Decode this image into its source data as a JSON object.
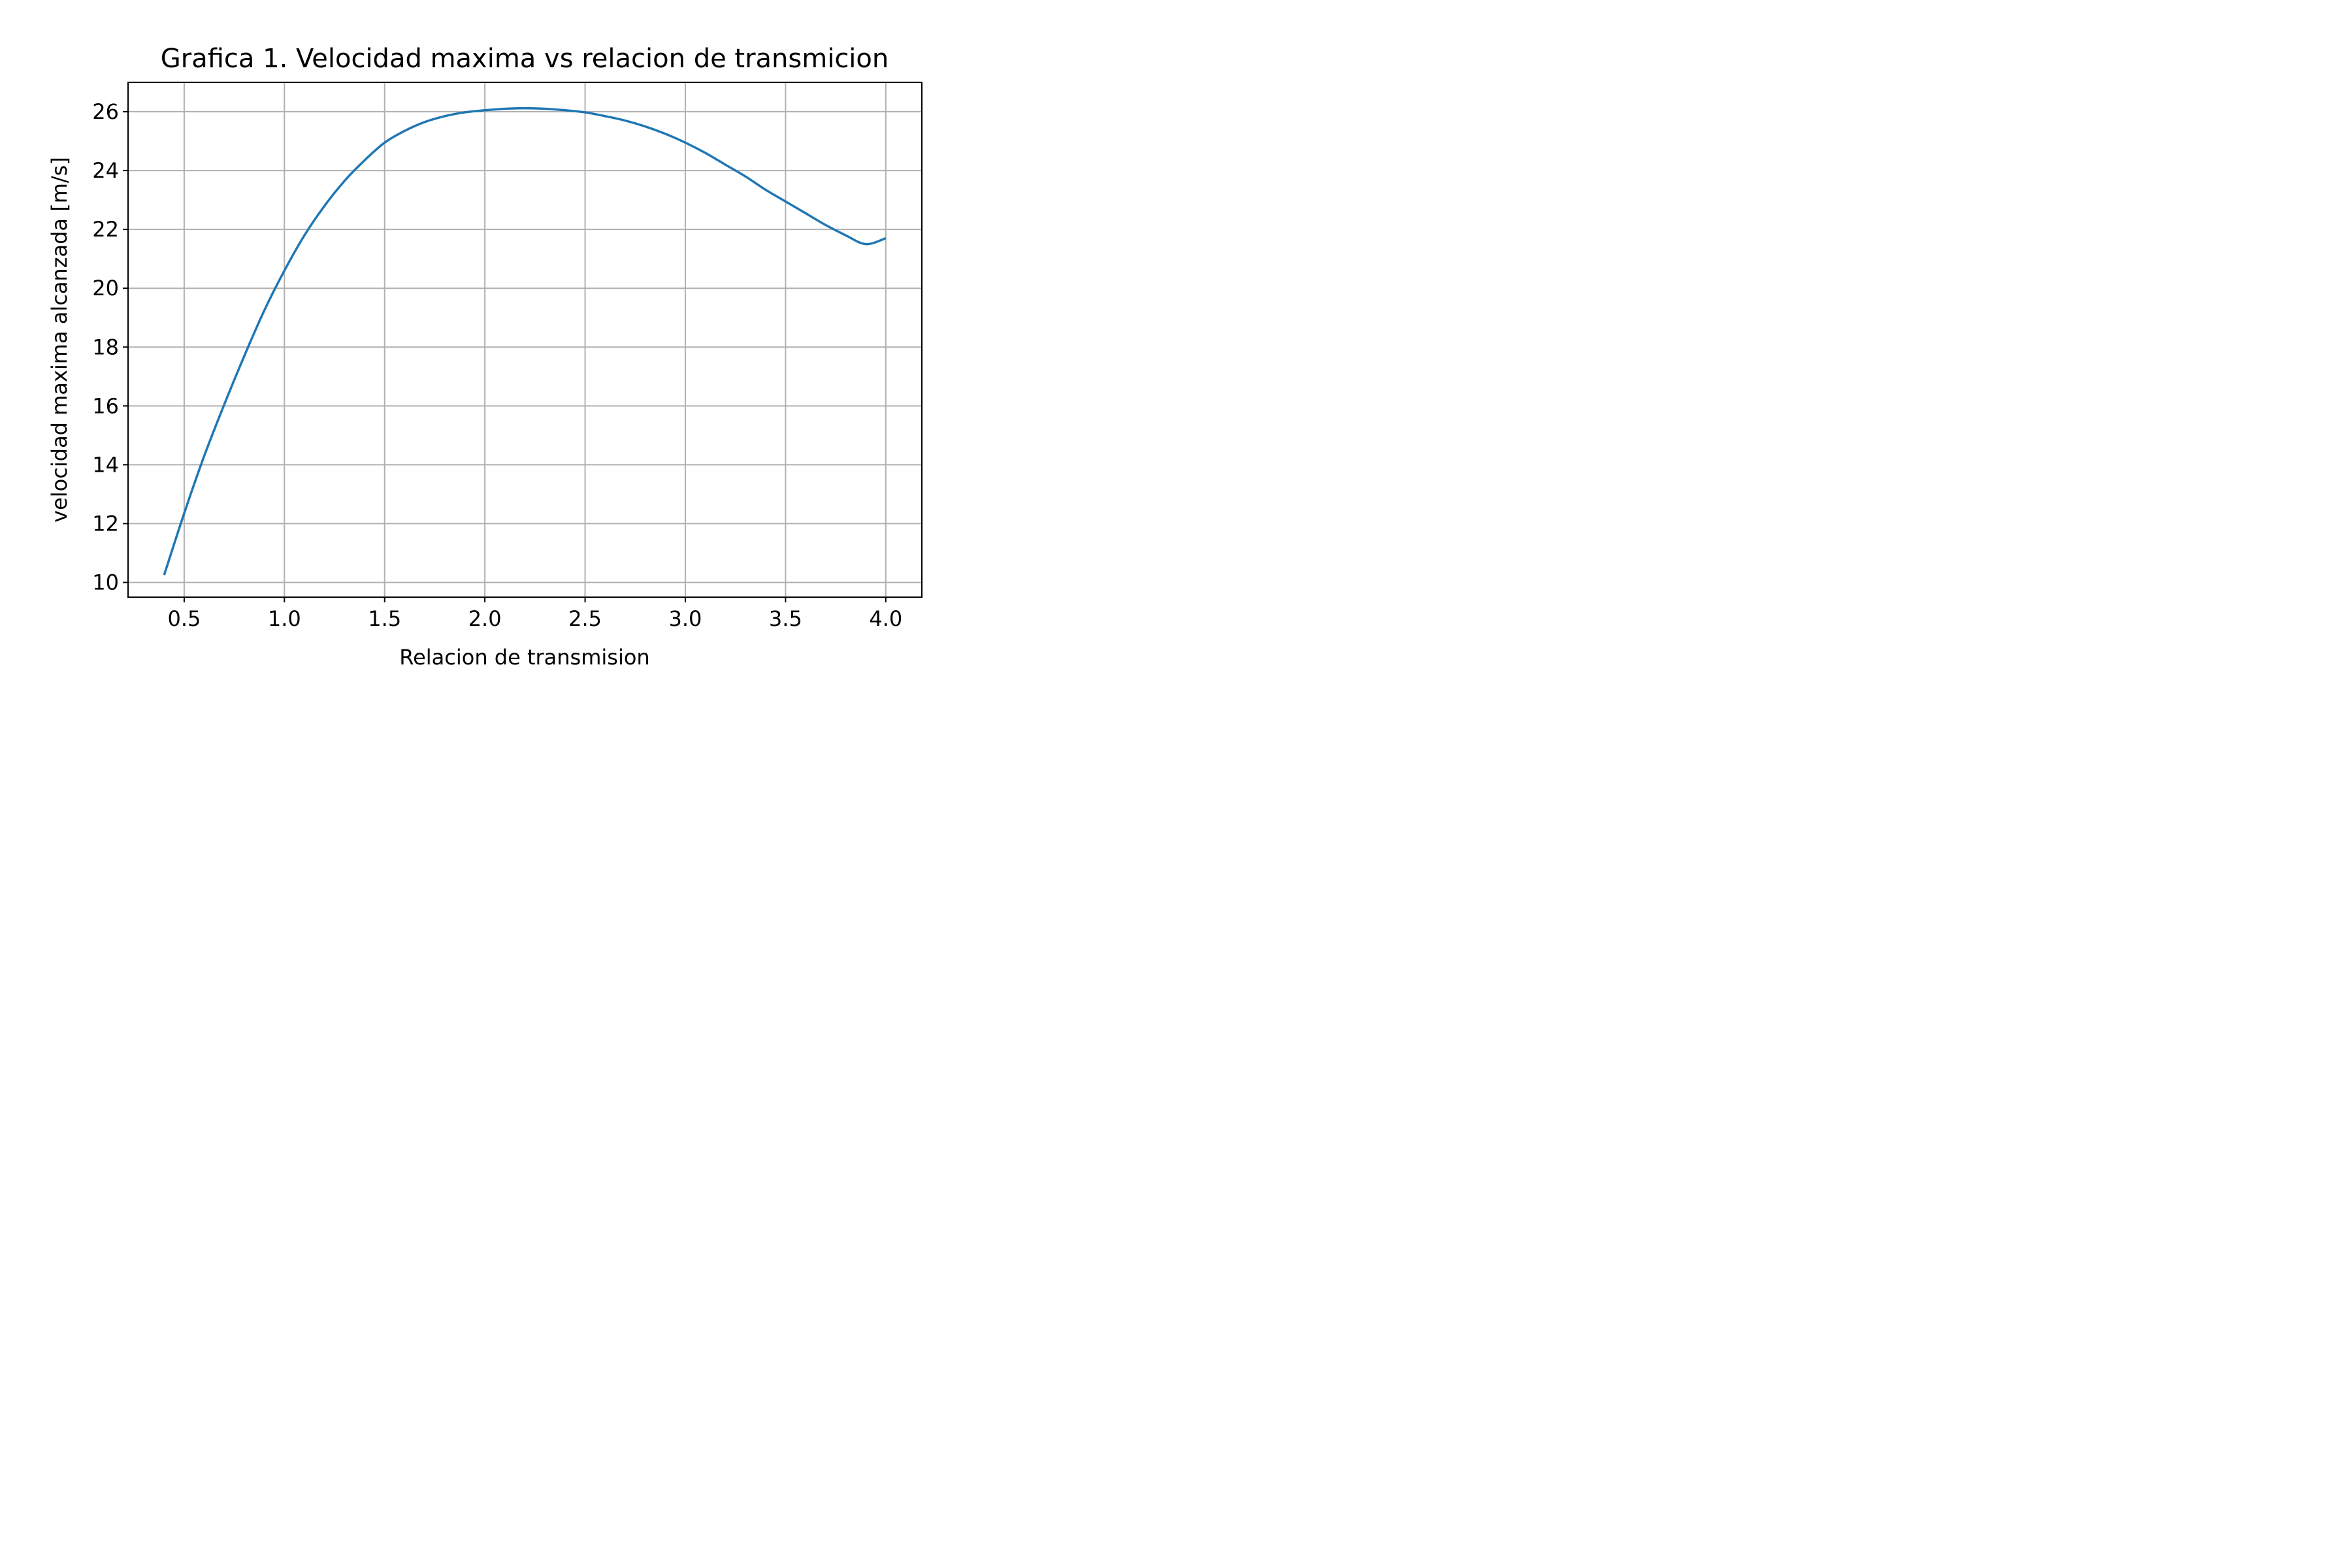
{
  "chart_data": {
    "type": "line",
    "title": "Grafica 1. Velocidad maxima vs relacion de transmicion",
    "xlabel": "Relacion de transmision",
    "ylabel": "velocidad maxima alcanzada [m/s]",
    "xlim": [
      0.22,
      4.18
    ],
    "ylim": [
      9.5,
      27.0
    ],
    "xticks": [
      "0.5",
      "1.0",
      "1.5",
      "2.0",
      "2.5",
      "3.0",
      "3.5",
      "4.0"
    ],
    "yticks": [
      "10",
      "12",
      "14",
      "16",
      "18",
      "20",
      "22",
      "24",
      "26"
    ],
    "grid": true,
    "series": [
      {
        "color": "#1f77b4",
        "x": [
          0.4,
          0.5,
          0.6,
          0.7,
          0.8,
          0.9,
          1.0,
          1.1,
          1.2,
          1.3,
          1.4,
          1.5,
          1.6,
          1.7,
          1.8,
          1.9,
          2.0,
          2.1,
          2.2,
          2.3,
          2.4,
          2.5,
          2.6,
          2.7,
          2.8,
          2.9,
          3.0,
          3.1,
          3.2,
          3.3,
          3.4,
          3.5,
          3.6,
          3.7,
          3.8,
          3.9,
          4.0
        ],
        "y": [
          10.25,
          12.35,
          14.3,
          16.05,
          17.7,
          19.25,
          20.6,
          21.8,
          22.8,
          23.65,
          24.35,
          24.95,
          25.35,
          25.65,
          25.85,
          25.98,
          26.05,
          26.1,
          26.12,
          26.1,
          26.05,
          25.98,
          25.85,
          25.7,
          25.5,
          25.25,
          24.95,
          24.6,
          24.2,
          23.8,
          23.35,
          22.95,
          22.55,
          22.15,
          21.8,
          21.5,
          21.7
        ]
      }
    ]
  }
}
